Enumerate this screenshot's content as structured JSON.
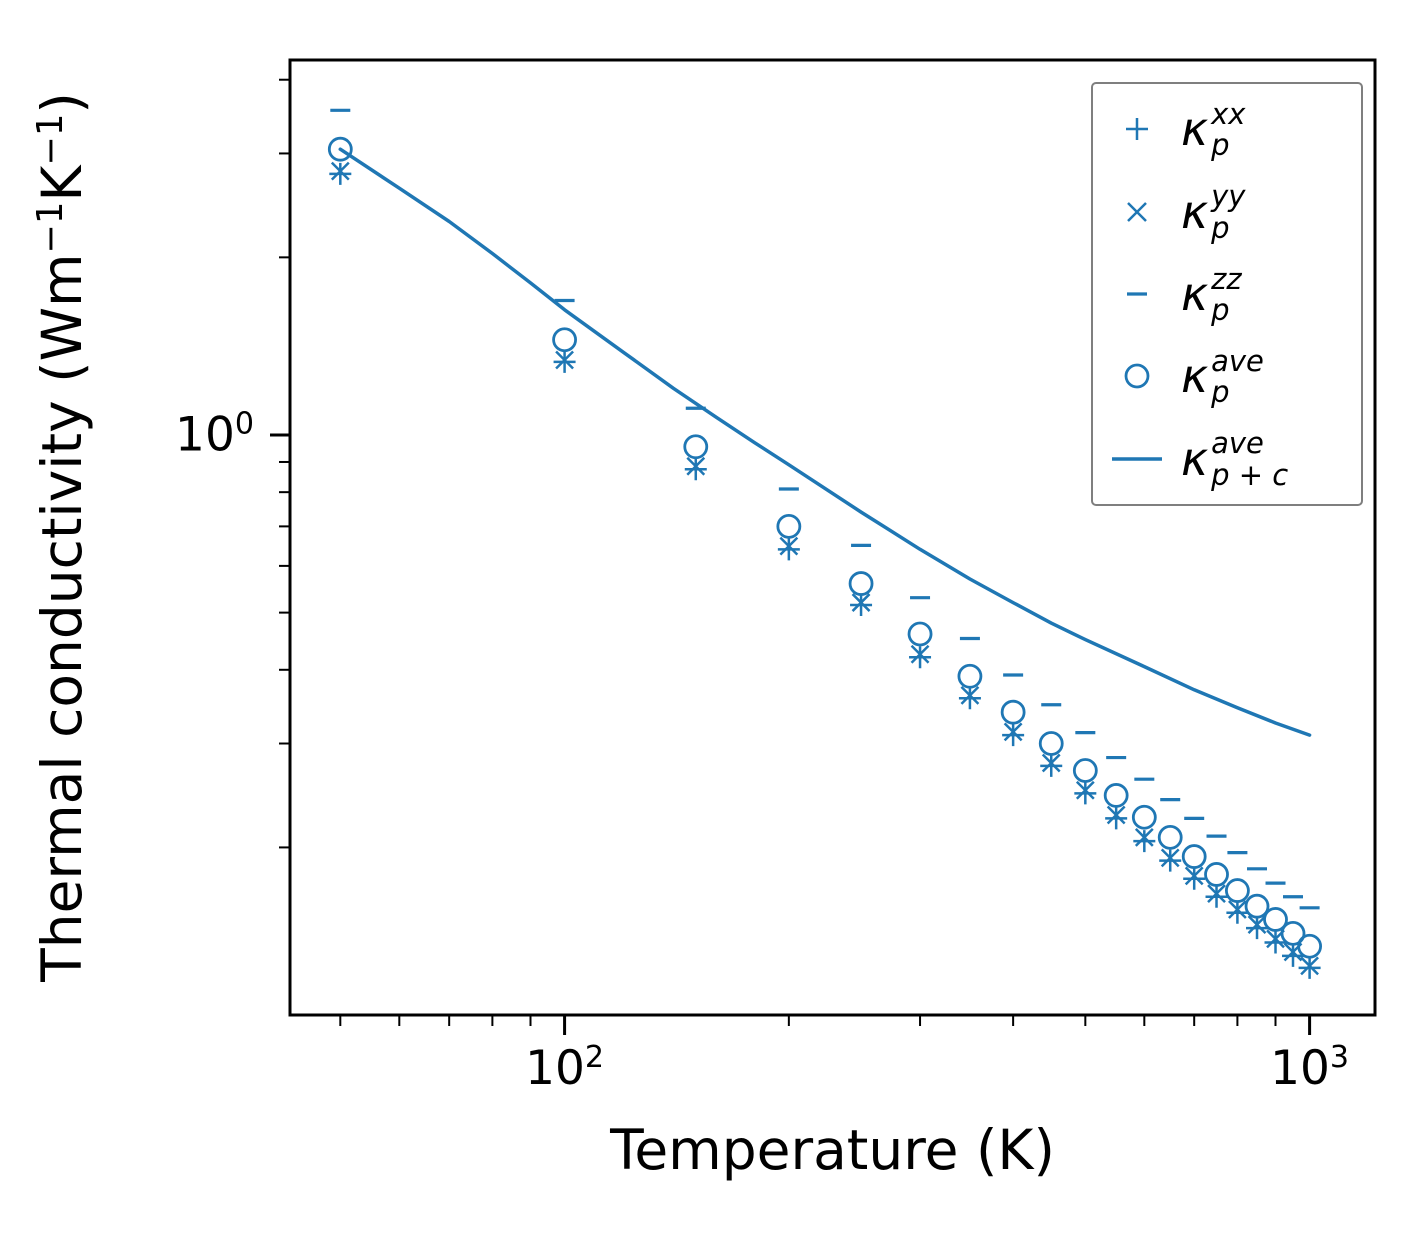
{
  "figure": {
    "background": "#ffffff",
    "accent_color": "#1f77b4",
    "spine_color": "#000000",
    "ylabel_parts": [
      {
        "text": "Thermal conductivity (Wm"
      },
      {
        "sup": "−1"
      },
      {
        "text": "K"
      },
      {
        "sup": "−1"
      },
      {
        "text": ")"
      }
    ]
  },
  "chart_data": {
    "type": "scatter",
    "title": "",
    "xlabel": "Temperature (K)",
    "ylabel": "Thermal conductivity (Wm⁻¹K⁻¹)",
    "x_scale": "log",
    "y_scale": "log",
    "xlim": [
      42.8,
      1224
    ],
    "ylim": [
      0.104,
      4.32
    ],
    "grid": false,
    "legend_position": "upper right",
    "x": [
      50,
      100,
      150,
      200,
      250,
      300,
      350,
      400,
      450,
      500,
      550,
      600,
      650,
      700,
      750,
      800,
      850,
      900,
      950,
      1000
    ],
    "series": [
      {
        "name": "kappa_p_xx",
        "marker": "plus",
        "values": [
          2.77,
          1.33,
          0.875,
          0.64,
          0.515,
          0.42,
          0.358,
          0.31,
          0.275,
          0.247,
          0.224,
          0.205,
          0.19,
          0.177,
          0.165,
          0.155,
          0.146,
          0.138,
          0.131,
          0.125
        ]
      },
      {
        "name": "kappa_p_yy",
        "marker": "times",
        "values": [
          2.8,
          1.34,
          0.885,
          0.648,
          0.52,
          0.425,
          0.362,
          0.314,
          0.278,
          0.25,
          0.227,
          0.208,
          0.192,
          0.179,
          0.167,
          0.157,
          0.148,
          0.14,
          0.133,
          0.126
        ]
      },
      {
        "name": "kappa_p_zz",
        "marker": "hline",
        "values": [
          3.55,
          1.69,
          1.11,
          0.81,
          0.65,
          0.53,
          0.452,
          0.392,
          0.349,
          0.313,
          0.284,
          0.261,
          0.241,
          0.224,
          0.209,
          0.196,
          0.184,
          0.174,
          0.165,
          0.158
        ]
      },
      {
        "name": "kappa_p_ave",
        "marker": "circle",
        "values": [
          3.05,
          1.45,
          0.955,
          0.7,
          0.56,
          0.46,
          0.39,
          0.339,
          0.3,
          0.27,
          0.245,
          0.225,
          0.208,
          0.193,
          0.18,
          0.169,
          0.159,
          0.151,
          0.143,
          0.136
        ]
      },
      {
        "name": "kappa_p_plus_c_ave",
        "marker": "line",
        "x": [
          50,
          60,
          70,
          80,
          90,
          100,
          120,
          140,
          160,
          180,
          200,
          250,
          300,
          350,
          400,
          450,
          500,
          600,
          700,
          800,
          900,
          1000
        ],
        "values": [
          3.05,
          2.62,
          2.3,
          2.03,
          1.81,
          1.63,
          1.38,
          1.2,
          1.07,
          0.97,
          0.89,
          0.74,
          0.64,
          0.57,
          0.52,
          0.48,
          0.45,
          0.405,
          0.37,
          0.345,
          0.325,
          0.31
        ]
      }
    ],
    "x_ticks": [
      {
        "value": 100,
        "base": "10",
        "exp": "2"
      },
      {
        "value": 1000,
        "base": "10",
        "exp": "3"
      }
    ],
    "y_ticks": [
      {
        "value": 1,
        "base": "10",
        "exp": "0"
      }
    ],
    "legend": {
      "items": [
        {
          "marker": "plus",
          "sym": "κ",
          "sup": "xx",
          "sub": "p"
        },
        {
          "marker": "times",
          "sym": "κ",
          "sup": "yy",
          "sub": "p"
        },
        {
          "marker": "hline",
          "sym": "κ",
          "sup": "zz",
          "sub": "p"
        },
        {
          "marker": "circle",
          "sym": "κ",
          "sup": "ave",
          "sub": "p"
        },
        {
          "marker": "line",
          "sym": "κ",
          "sup": "ave",
          "sub": "p + c"
        }
      ]
    }
  }
}
